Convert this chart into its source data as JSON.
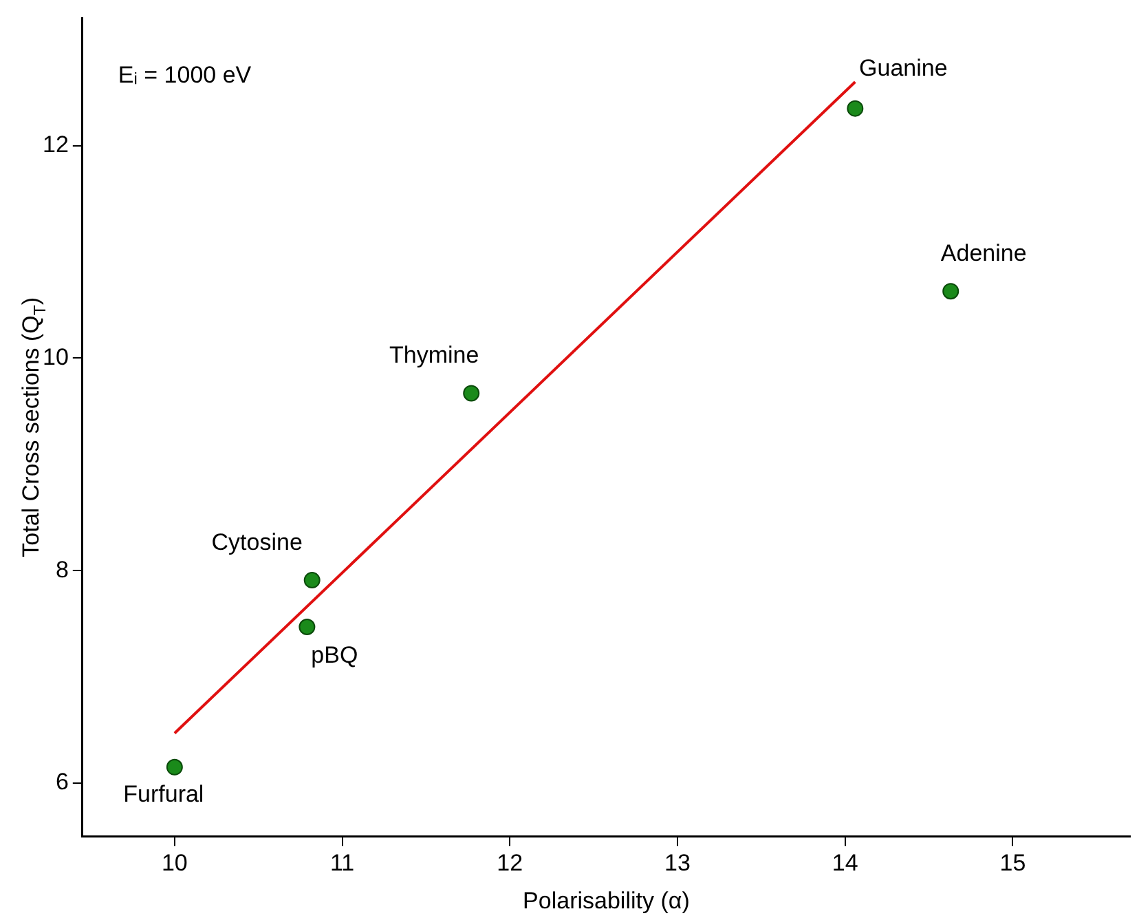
{
  "chart_data": {
    "type": "line",
    "xlabel": "Polarisability (α)",
    "ylabel": "Total Cross sections (Q$_{T}$)",
    "xlim": [
      9.45,
      15.7
    ],
    "xticks": [
      10,
      11,
      12,
      13,
      14,
      15
    ],
    "ylim": [
      5.5,
      13.2
    ],
    "yticks": [
      6,
      8,
      10,
      12
    ],
    "grid": false,
    "legend": false,
    "series": [
      {
        "type": "scatter",
        "marker": "circle",
        "color": "#1a8a1a",
        "x": [
          10.0,
          10.82,
          10.79,
          11.77,
          14.06,
          14.63
        ],
        "values": [
          6.15,
          7.91,
          7.47,
          9.67,
          12.35,
          10.63
        ]
      },
      {
        "color": "#e01010",
        "x": [
          10.0,
          14.06
        ],
        "values": [
          6.47,
          12.6
        ]
      }
    ],
    "annotations": [
      "Eᵢ = 1000 eV",
      {
        "text": "Furfural",
        "x": 10.0,
        "y": 6.15
      },
      {
        "text": "Cytosine",
        "x": 10.82,
        "y": 7.91
      },
      {
        "text": "pBQ",
        "x": 10.79,
        "y": 7.47
      },
      {
        "text": "Thymine",
        "x": 11.77,
        "y": 9.67
      },
      {
        "text": "Guanine",
        "x": 14.06,
        "y": 12.35
      },
      {
        "text": "Adenine",
        "x": 14.63,
        "y": 10.63
      }
    ]
  }
}
